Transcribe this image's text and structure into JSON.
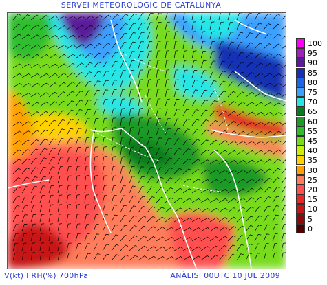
{
  "header": {
    "title": "SERVEI METEOROLÒGIC DE CATALUNYA"
  },
  "footer": {
    "variable": "V(kt) I RH(%) 700hPa",
    "analysis": "ANÀLISI 00UTC 10 JUL 2009"
  },
  "legend": {
    "items": [
      {
        "label": "100",
        "color": "#ff00ff"
      },
      {
        "label": "95",
        "color": "#a020c0"
      },
      {
        "label": "90",
        "color": "#5a1a9a"
      },
      {
        "label": "85",
        "color": "#1430b4"
      },
      {
        "label": "80",
        "color": "#1e64e6"
      },
      {
        "label": "75",
        "color": "#3ca0ff"
      },
      {
        "label": "70",
        "color": "#28e6e6"
      },
      {
        "label": "65",
        "color": "#0a7a1e"
      },
      {
        "label": "60",
        "color": "#1e9a28"
      },
      {
        "label": "55",
        "color": "#2dbe2d"
      },
      {
        "label": "45",
        "color": "#78dc1e"
      },
      {
        "label": "40",
        "color": "#c8f00a"
      },
      {
        "label": "35",
        "color": "#ffd200"
      },
      {
        "label": "30",
        "color": "#ffa000"
      },
      {
        "label": "25",
        "color": "#ff7d5a"
      },
      {
        "label": "20",
        "color": "#ff5050"
      },
      {
        "label": "15",
        "color": "#e62828"
      },
      {
        "label": "10",
        "color": "#c81414"
      },
      {
        "label": "5",
        "color": "#8c0a0a"
      },
      {
        "label": "0",
        "color": "#500000"
      }
    ]
  }
}
